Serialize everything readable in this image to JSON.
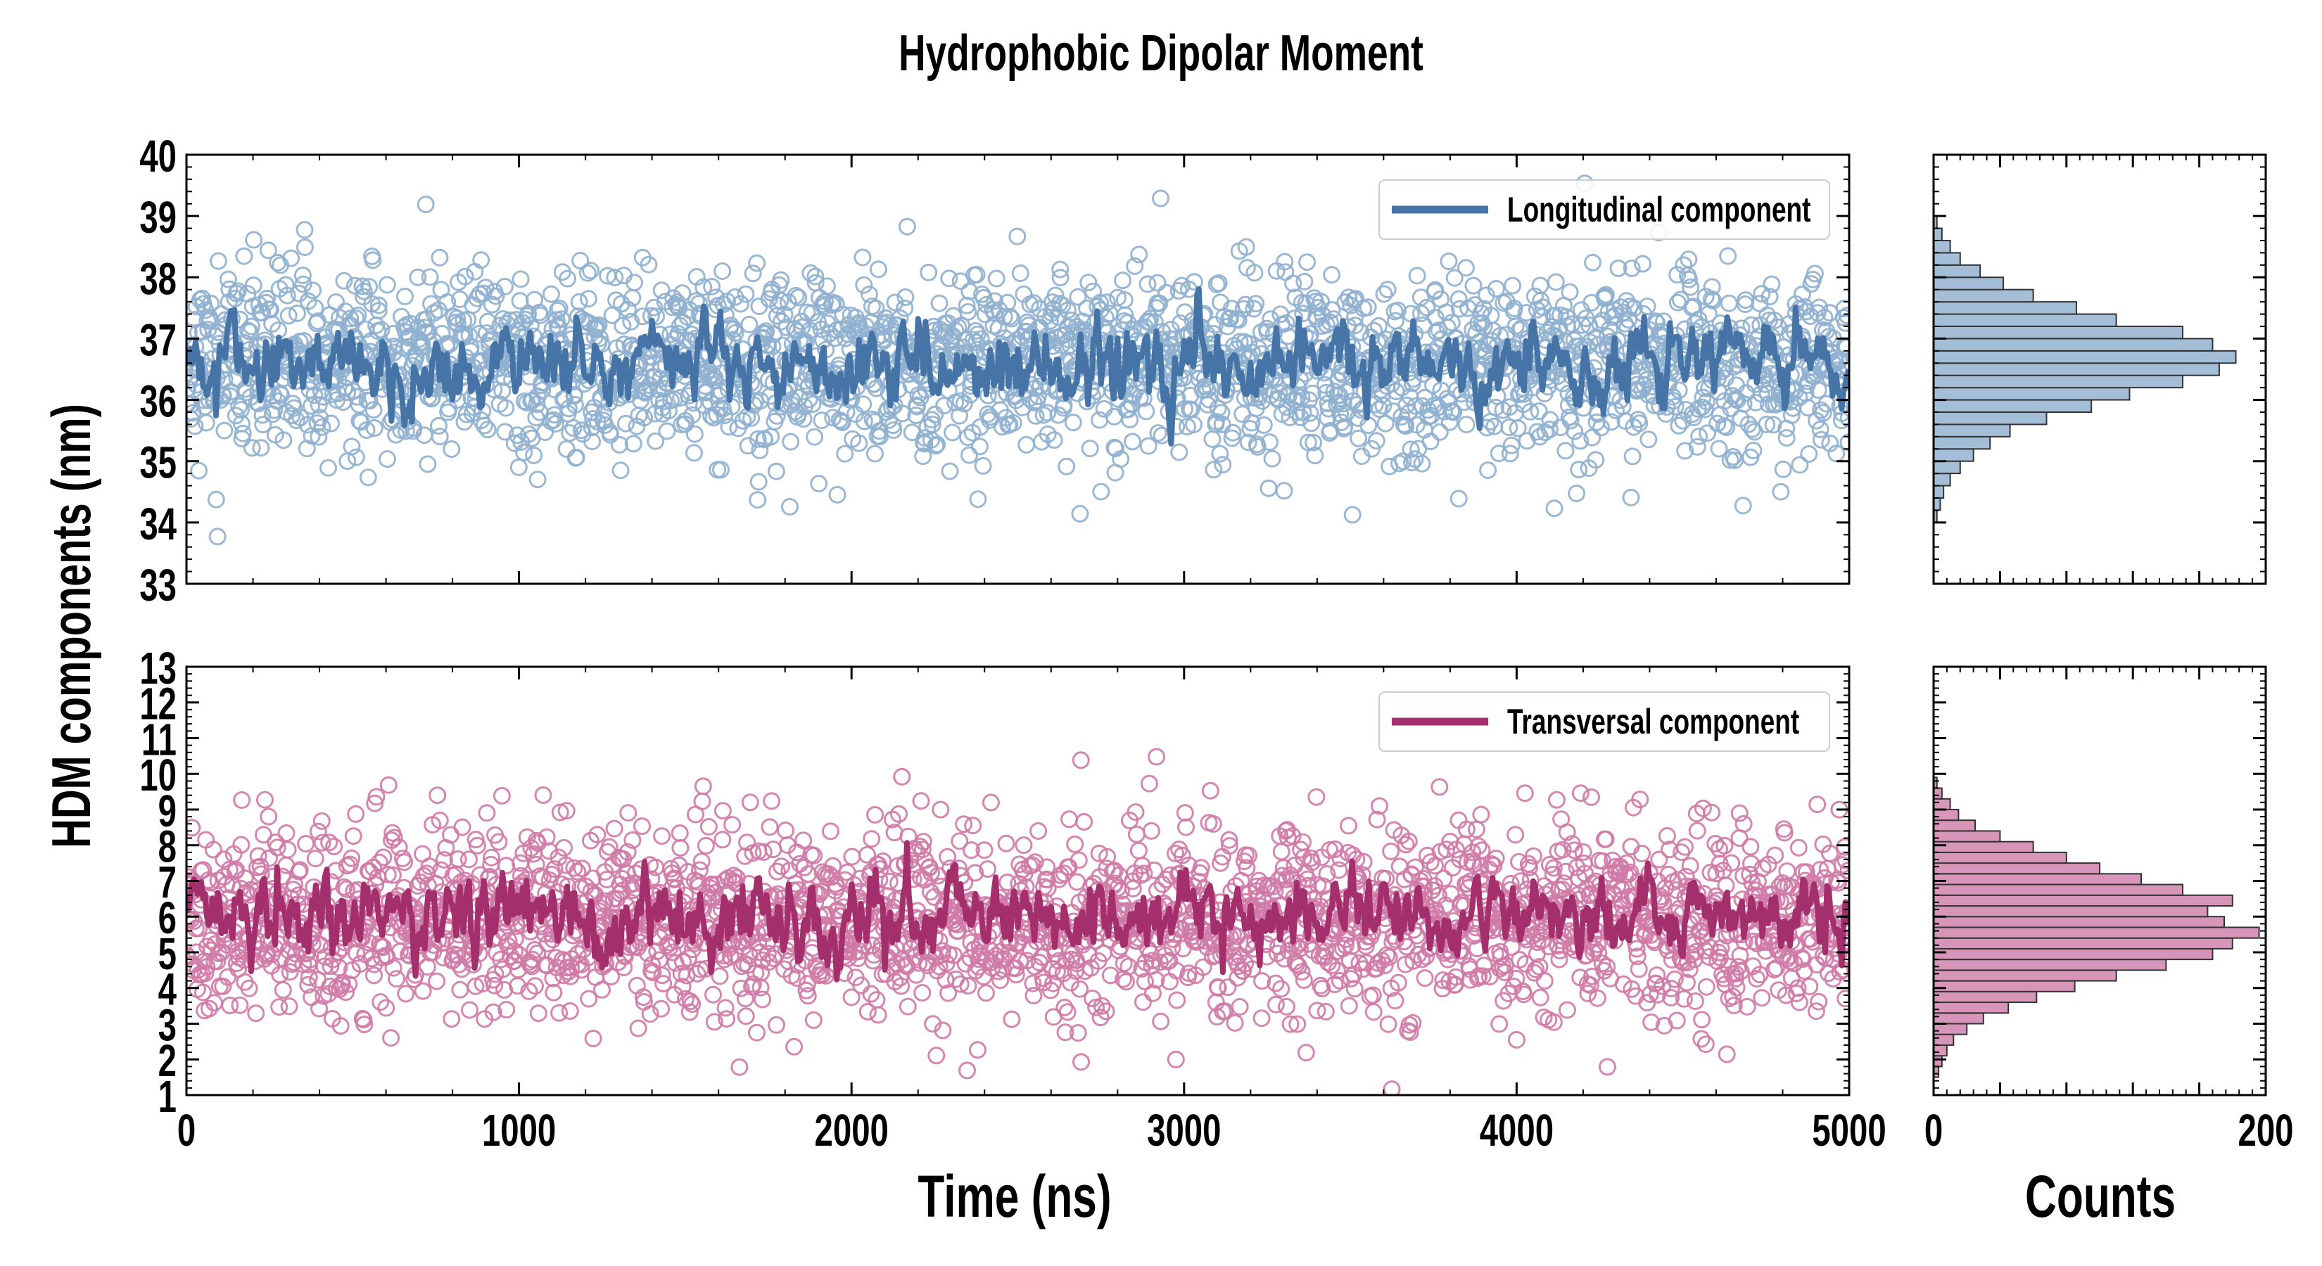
{
  "figure": {
    "title": "Hydrophobic Dipolar Moment",
    "ylabel": "HDM components (nm)",
    "xlabel": "Time (ns)",
    "hist_xlabel": "Counts"
  },
  "chart_data": [
    {
      "type": "scatter",
      "panel": "top-left",
      "title": "",
      "xlabel": "",
      "ylabel": "",
      "xlim": [
        0,
        5000
      ],
      "ylim": [
        33,
        40
      ],
      "xticks": [
        0,
        1000,
        2000,
        3000,
        4000,
        5000
      ],
      "yticks": [
        33,
        34,
        35,
        36,
        37,
        38,
        39,
        40
      ],
      "show_xtick_labels": false,
      "grid": false,
      "legend_position": "top-right",
      "series": [
        {
          "name": "",
          "kind": "scatter-open-circles",
          "color": "#8fb0cf",
          "n_points": 2500,
          "mean": 36.6,
          "sd": 0.75
        },
        {
          "name": "Longitudinal component",
          "kind": "line",
          "color": "#4674a6",
          "mean": 36.6,
          "sd": 0.32
        }
      ]
    },
    {
      "type": "bar",
      "panel": "top-right",
      "orientation": "horizontal-histogram",
      "xlabel": "",
      "xlim": [
        0,
        200
      ],
      "ylim": [
        33,
        40
      ],
      "show_xtick_labels": false,
      "color": "#a5bed8",
      "edge_color": "#333333",
      "bin_edges": [
        34.0,
        34.2,
        34.4,
        34.6,
        34.8,
        35.0,
        35.2,
        35.4,
        35.6,
        35.8,
        36.0,
        36.2,
        36.4,
        36.6,
        36.8,
        37.0,
        37.2,
        37.4,
        37.6,
        37.8,
        38.0,
        38.2,
        38.4,
        38.6,
        38.8,
        39.0
      ],
      "counts": [
        2,
        4,
        6,
        10,
        16,
        24,
        34,
        46,
        68,
        95,
        118,
        150,
        172,
        182,
        168,
        150,
        110,
        86,
        60,
        42,
        28,
        16,
        10,
        5,
        2
      ]
    },
    {
      "type": "scatter",
      "panel": "bottom-left",
      "title": "",
      "xlabel": "Time (ns)",
      "ylabel": "",
      "xlim": [
        0,
        5000
      ],
      "ylim": [
        1,
        13
      ],
      "xticks": [
        0,
        1000,
        2000,
        3000,
        4000,
        5000
      ],
      "yticks": [
        1,
        2,
        3,
        4,
        5,
        6,
        7,
        8,
        9,
        10,
        11,
        12,
        13
      ],
      "show_xtick_labels": true,
      "grid": false,
      "legend_position": "top-right",
      "series": [
        {
          "name": "",
          "kind": "scatter-open-circles",
          "color": "#cf7aa7",
          "n_points": 2500,
          "mean": 5.9,
          "sd": 1.3
        },
        {
          "name": "Transversal component",
          "kind": "line",
          "color": "#a3306d",
          "mean": 6.0,
          "sd": 0.55
        }
      ]
    },
    {
      "type": "bar",
      "panel": "bottom-right",
      "orientation": "horizontal-histogram",
      "xlabel": "Counts",
      "xlim": [
        0,
        200
      ],
      "ylim": [
        1,
        13
      ],
      "xticks": [
        0,
        200
      ],
      "show_xtick_labels": true,
      "color": "#d796b9",
      "edge_color": "#333333",
      "bin_edges": [
        1.5,
        1.8,
        2.1,
        2.4,
        2.7,
        3.0,
        3.3,
        3.6,
        3.9,
        4.2,
        4.5,
        4.8,
        5.1,
        5.4,
        5.7,
        6.0,
        6.3,
        6.6,
        6.9,
        7.2,
        7.5,
        7.8,
        8.1,
        8.4,
        8.7,
        9.0,
        9.3,
        9.6,
        9.9
      ],
      "counts": [
        3,
        5,
        8,
        12,
        20,
        30,
        45,
        62,
        85,
        110,
        140,
        168,
        180,
        196,
        175,
        165,
        180,
        150,
        125,
        100,
        80,
        60,
        40,
        25,
        15,
        10,
        5,
        2
      ]
    }
  ]
}
